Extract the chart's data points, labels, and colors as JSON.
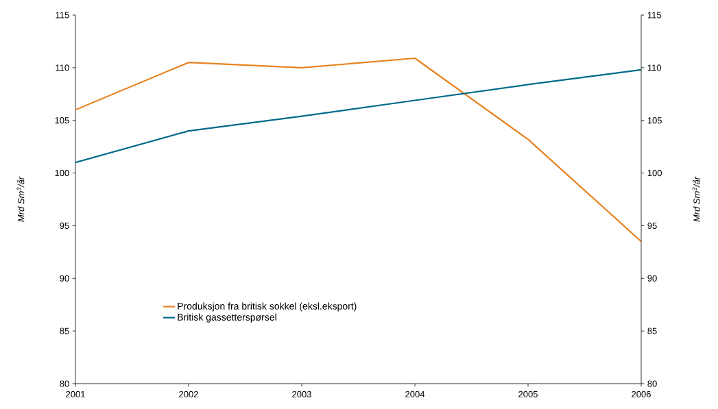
{
  "chart_data": {
    "type": "line",
    "x": [
      2001,
      2002,
      2003,
      2004,
      2005,
      2006
    ],
    "series": [
      {
        "name": "Produksjon fra britisk sokkel (eksl.eksport)",
        "color": "#e8821e",
        "values": [
          106,
          110.5,
          110,
          110.9,
          103.2,
          93.5
        ]
      },
      {
        "name": "Britisk gassetterspørsel",
        "color": "#006a8a",
        "values": [
          101,
          104,
          105.4,
          106.9,
          108.4,
          109.8
        ]
      }
    ],
    "xlim": [
      2001,
      2006
    ],
    "xticks": [
      2001,
      2002,
      2003,
      2004,
      2005,
      2006
    ],
    "ylim": [
      80,
      115
    ],
    "yticks": [
      80,
      85,
      90,
      95,
      100,
      105,
      110,
      115
    ],
    "y2lim": [
      80,
      115
    ],
    "y2ticks": [
      80,
      85,
      90,
      95,
      100,
      105,
      110,
      115
    ],
    "ylabel": "Mrd Sm$^{3}$/år",
    "y2label": "Mrd Sm$^{3}$/år",
    "grid": false,
    "legend": "bottom left",
    "marker": "none",
    "line_style": "solid"
  }
}
